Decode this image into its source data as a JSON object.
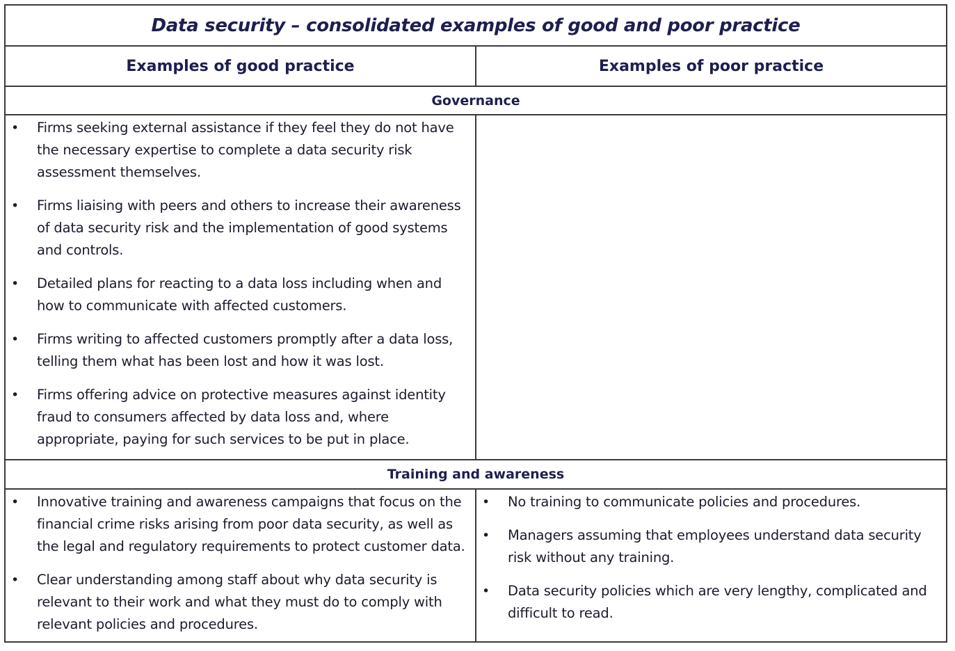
{
  "table": {
    "title": "Data security – consolidated examples of good and poor practice",
    "headers": {
      "good": "Examples of good practice",
      "poor": "Examples of poor practice"
    },
    "sections": [
      {
        "name": "Governance",
        "good": [
          "Firms seeking external assistance if they feel they do not have the necessary expertise to complete a data security risk assessment themselves.",
          "Firms liaising with peers and others to increase their awareness of data security risk and the implementation of good systems and controls.",
          "Detailed plans for reacting to a data loss including when and how to communicate with affected customers.",
          "Firms writing to affected customers promptly after a data loss, telling them what has been lost and how it was lost.",
          "Firms offering advice on protective measures against identity fraud to consumers affected by data loss and, where appropriate, paying for such services to be put in place."
        ],
        "poor": []
      },
      {
        "name": "Training and awareness",
        "good": [
          "Innovative training and awareness campaigns that focus on the financial crime risks arising from poor data security, as well as the legal and regulatory requirements to protect customer data.",
          "Clear understanding among staff about why data security is relevant to their work and what they must do to comply with relevant policies and procedures."
        ],
        "poor": [
          "No training to communicate policies and procedures.",
          "Managers assuming that employees understand data security risk without any training.",
          "Data security policies which are very lengthy, complicated and difficult to read."
        ]
      }
    ],
    "bullet_glyph": "•",
    "colors": {
      "heading": "#1e1e50",
      "text": "#1b1b2c",
      "border": "#3a3a3a"
    }
  }
}
